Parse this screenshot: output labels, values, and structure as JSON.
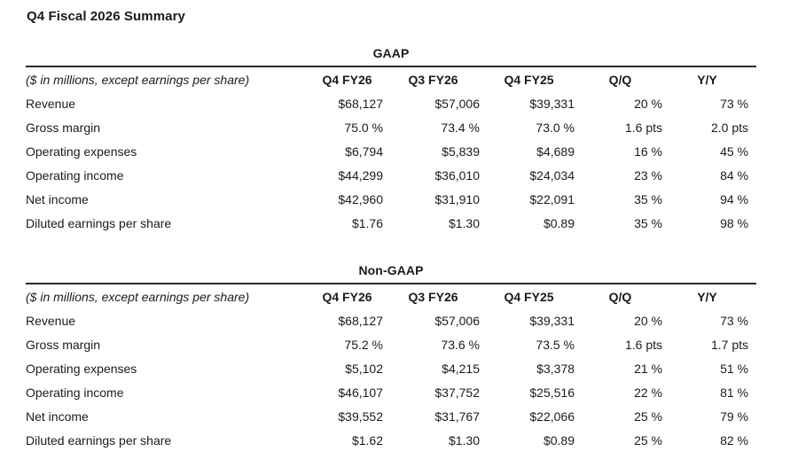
{
  "page_title": "Q4 Fiscal 2026 Summary",
  "colors": {
    "text": "#1b1b1b",
    "rule": "#2b2b2b",
    "background": "#ffffff"
  },
  "tables": [
    {
      "heading": "GAAP",
      "note": "($ in millions, except earnings per share)",
      "columns": [
        "Q4 FY26",
        "Q3 FY26",
        "Q4 FY25",
        "Q/Q",
        "Y/Y"
      ],
      "rows": [
        {
          "label": "Revenue",
          "values": [
            "$68,127",
            "$57,006",
            "$39,331",
            "20 %",
            "73 %"
          ]
        },
        {
          "label": "Gross margin",
          "values": [
            "75.0 %",
            "73.4 %",
            "73.0 %",
            "1.6 pts",
            "2.0 pts"
          ]
        },
        {
          "label": "Operating expenses",
          "values": [
            "$6,794",
            "$5,839",
            "$4,689",
            "16 %",
            "45 %"
          ]
        },
        {
          "label": "Operating income",
          "values": [
            "$44,299",
            "$36,010",
            "$24,034",
            "23 %",
            "84 %"
          ]
        },
        {
          "label": "Net income",
          "values": [
            "$42,960",
            "$31,910",
            "$22,091",
            "35 %",
            "94 %"
          ]
        },
        {
          "label": "Diluted earnings per share",
          "values": [
            "$1.76",
            "$1.30",
            "$0.89",
            "35 %",
            "98 %"
          ]
        }
      ]
    },
    {
      "heading": "Non-GAAP",
      "note": "($ in millions, except earnings per share)",
      "columns": [
        "Q4 FY26",
        "Q3 FY26",
        "Q4 FY25",
        "Q/Q",
        "Y/Y"
      ],
      "rows": [
        {
          "label": "Revenue",
          "values": [
            "$68,127",
            "$57,006",
            "$39,331",
            "20 %",
            "73 %"
          ]
        },
        {
          "label": "Gross margin",
          "values": [
            "75.2 %",
            "73.6 %",
            "73.5 %",
            "1.6 pts",
            "1.7 pts"
          ]
        },
        {
          "label": "Operating expenses",
          "values": [
            "$5,102",
            "$4,215",
            "$3,378",
            "21 %",
            "51 %"
          ]
        },
        {
          "label": "Operating income",
          "values": [
            "$46,107",
            "$37,752",
            "$25,516",
            "22 %",
            "81 %"
          ]
        },
        {
          "label": "Net income",
          "values": [
            "$39,552",
            "$31,767",
            "$22,066",
            "25 %",
            "79 %"
          ]
        },
        {
          "label": "Diluted earnings per share",
          "values": [
            "$1.62",
            "$1.30",
            "$0.89",
            "25 %",
            "82 %"
          ]
        }
      ]
    }
  ]
}
